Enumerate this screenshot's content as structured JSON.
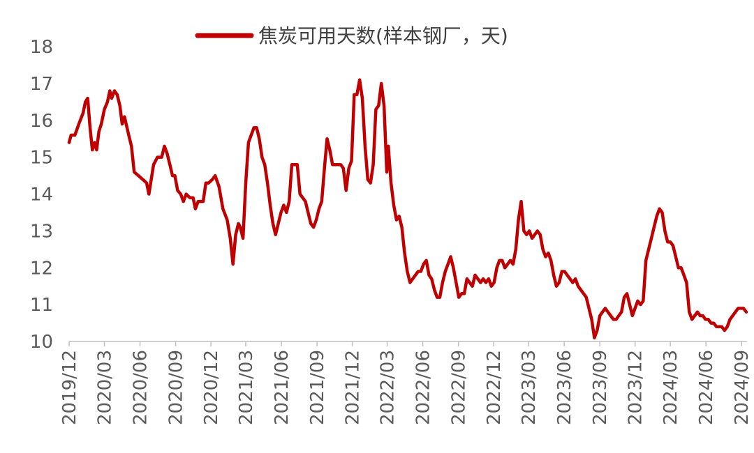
{
  "chart_data": {
    "type": "line",
    "title": "",
    "xlabel": "",
    "ylabel": "",
    "ylim": [
      10,
      18
    ],
    "y_ticks": [
      10,
      11,
      12,
      13,
      14,
      15,
      16,
      17,
      18
    ],
    "x_tick_labels": [
      "2019/12",
      "2020/03",
      "2020/06",
      "2020/09",
      "2020/12",
      "2021/03",
      "2021/06",
      "2021/09",
      "2021/12",
      "2022/03",
      "2022/06",
      "2022/09",
      "2022/12",
      "2023/03",
      "2023/06",
      "2023/09",
      "2023/12",
      "2024/03",
      "2024/06",
      "2024/09"
    ],
    "grid": false,
    "legend_position": "top",
    "series": [
      {
        "name": "焦炭可用天数(样本钢厂，天)",
        "color": "#c00000",
        "points": [
          [
            "2019-12-01",
            15.4
          ],
          [
            "2019-12-06",
            15.6
          ],
          [
            "2019-12-16",
            15.6
          ],
          [
            "2019-12-26",
            15.9
          ],
          [
            "2020-01-06",
            16.2
          ],
          [
            "2020-01-12",
            16.5
          ],
          [
            "2020-01-18",
            16.6
          ],
          [
            "2020-01-24",
            15.8
          ],
          [
            "2020-01-30",
            15.2
          ],
          [
            "2020-02-05",
            15.4
          ],
          [
            "2020-02-10",
            15.2
          ],
          [
            "2020-02-16",
            15.7
          ],
          [
            "2020-02-22",
            15.9
          ],
          [
            "2020-03-01",
            16.3
          ],
          [
            "2020-03-09",
            16.5
          ],
          [
            "2020-03-15",
            16.8
          ],
          [
            "2020-03-20",
            16.6
          ],
          [
            "2020-03-27",
            16.8
          ],
          [
            "2020-04-03",
            16.7
          ],
          [
            "2020-04-10",
            16.4
          ],
          [
            "2020-04-16",
            15.9
          ],
          [
            "2020-04-22",
            16.1
          ],
          [
            "2020-05-03",
            15.6
          ],
          [
            "2020-05-10",
            15.3
          ],
          [
            "2020-05-17",
            14.6
          ],
          [
            "2020-05-28",
            14.5
          ],
          [
            "2020-06-08",
            14.4
          ],
          [
            "2020-06-18",
            14.3
          ],
          [
            "2020-06-24",
            14.0
          ],
          [
            "2020-07-06",
            14.8
          ],
          [
            "2020-07-16",
            15.0
          ],
          [
            "2020-07-27",
            15.0
          ],
          [
            "2020-08-03",
            15.3
          ],
          [
            "2020-08-10",
            15.1
          ],
          [
            "2020-08-17",
            14.8
          ],
          [
            "2020-08-24",
            14.5
          ],
          [
            "2020-08-30",
            14.5
          ],
          [
            "2020-09-06",
            14.1
          ],
          [
            "2020-09-14",
            14.0
          ],
          [
            "2020-09-21",
            13.8
          ],
          [
            "2020-09-28",
            14.0
          ],
          [
            "2020-10-08",
            13.9
          ],
          [
            "2020-10-16",
            13.9
          ],
          [
            "2020-10-22",
            13.6
          ],
          [
            "2020-10-29",
            13.8
          ],
          [
            "2020-11-04",
            13.8
          ],
          [
            "2020-11-11",
            13.8
          ],
          [
            "2020-11-18",
            14.3
          ],
          [
            "2020-11-25",
            14.3
          ],
          [
            "2020-12-05",
            14.4
          ],
          [
            "2020-12-12",
            14.5
          ],
          [
            "2020-12-22",
            14.2
          ],
          [
            "2021-01-01",
            13.6
          ],
          [
            "2021-01-12",
            13.3
          ],
          [
            "2021-01-20",
            12.8
          ],
          [
            "2021-01-27",
            12.1
          ],
          [
            "2021-02-03",
            12.9
          ],
          [
            "2021-02-10",
            13.2
          ],
          [
            "2021-02-15",
            13.1
          ],
          [
            "2021-02-22",
            12.8
          ],
          [
            "2021-03-01",
            14.3
          ],
          [
            "2021-03-08",
            15.4
          ],
          [
            "2021-03-15",
            15.6
          ],
          [
            "2021-03-22",
            15.8
          ],
          [
            "2021-03-29",
            15.8
          ],
          [
            "2021-04-05",
            15.5
          ],
          [
            "2021-04-12",
            15.0
          ],
          [
            "2021-04-19",
            14.8
          ],
          [
            "2021-04-26",
            14.3
          ],
          [
            "2021-05-03",
            13.7
          ],
          [
            "2021-05-10",
            13.2
          ],
          [
            "2021-05-17",
            12.9
          ],
          [
            "2021-05-24",
            13.2
          ],
          [
            "2021-05-31",
            13.5
          ],
          [
            "2021-06-07",
            13.7
          ],
          [
            "2021-06-14",
            13.5
          ],
          [
            "2021-06-21",
            13.8
          ],
          [
            "2021-06-28",
            14.8
          ],
          [
            "2021-07-05",
            14.8
          ],
          [
            "2021-07-12",
            14.8
          ],
          [
            "2021-07-19",
            14.0
          ],
          [
            "2021-07-26",
            13.9
          ],
          [
            "2021-08-02",
            13.8
          ],
          [
            "2021-08-09",
            13.5
          ],
          [
            "2021-08-16",
            13.2
          ],
          [
            "2021-08-23",
            13.1
          ],
          [
            "2021-08-30",
            13.3
          ],
          [
            "2021-09-06",
            13.6
          ],
          [
            "2021-09-13",
            13.8
          ],
          [
            "2021-09-20",
            14.7
          ],
          [
            "2021-09-27",
            15.5
          ],
          [
            "2021-10-04",
            15.2
          ],
          [
            "2021-10-11",
            14.8
          ],
          [
            "2021-10-18",
            14.8
          ],
          [
            "2021-10-25",
            14.8
          ],
          [
            "2021-11-01",
            14.8
          ],
          [
            "2021-11-08",
            14.7
          ],
          [
            "2021-11-15",
            14.1
          ],
          [
            "2021-11-22",
            14.7
          ],
          [
            "2021-11-29",
            14.9
          ],
          [
            "2021-12-06",
            16.7
          ],
          [
            "2021-12-13",
            16.7
          ],
          [
            "2021-12-20",
            17.1
          ],
          [
            "2021-12-27",
            16.6
          ],
          [
            "2022-01-03",
            15.3
          ],
          [
            "2022-01-10",
            14.4
          ],
          [
            "2022-01-17",
            14.3
          ],
          [
            "2022-01-24",
            14.8
          ],
          [
            "2022-01-31",
            16.3
          ],
          [
            "2022-02-07",
            16.4
          ],
          [
            "2022-02-14",
            17.0
          ],
          [
            "2022-02-21",
            16.4
          ],
          [
            "2022-02-28",
            14.6
          ],
          [
            "2022-03-04",
            15.3
          ],
          [
            "2022-03-11",
            14.3
          ],
          [
            "2022-03-18",
            13.7
          ],
          [
            "2022-03-25",
            13.3
          ],
          [
            "2022-04-01",
            13.4
          ],
          [
            "2022-04-08",
            13.1
          ],
          [
            "2022-04-15",
            12.4
          ],
          [
            "2022-04-22",
            11.9
          ],
          [
            "2022-04-29",
            11.6
          ],
          [
            "2022-05-06",
            11.7
          ],
          [
            "2022-05-13",
            11.8
          ],
          [
            "2022-05-20",
            11.9
          ],
          [
            "2022-05-27",
            11.9
          ],
          [
            "2022-06-03",
            12.1
          ],
          [
            "2022-06-10",
            12.2
          ],
          [
            "2022-06-17",
            11.8
          ],
          [
            "2022-06-24",
            11.7
          ],
          [
            "2022-07-01",
            11.4
          ],
          [
            "2022-07-08",
            11.2
          ],
          [
            "2022-07-15",
            11.2
          ],
          [
            "2022-07-22",
            11.6
          ],
          [
            "2022-07-29",
            11.9
          ],
          [
            "2022-08-05",
            12.1
          ],
          [
            "2022-08-12",
            12.3
          ],
          [
            "2022-08-19",
            12.0
          ],
          [
            "2022-08-26",
            11.6
          ],
          [
            "2022-09-02",
            11.2
          ],
          [
            "2022-09-09",
            11.3
          ],
          [
            "2022-09-16",
            11.3
          ],
          [
            "2022-09-23",
            11.7
          ],
          [
            "2022-09-30",
            11.6
          ],
          [
            "2022-10-07",
            11.5
          ],
          [
            "2022-10-14",
            11.8
          ],
          [
            "2022-10-21",
            11.7
          ],
          [
            "2022-10-28",
            11.6
          ],
          [
            "2022-11-04",
            11.7
          ],
          [
            "2022-11-11",
            11.6
          ],
          [
            "2022-11-18",
            11.7
          ],
          [
            "2022-11-25",
            11.5
          ],
          [
            "2022-12-02",
            11.6
          ],
          [
            "2022-12-09",
            12.0
          ],
          [
            "2022-12-16",
            12.2
          ],
          [
            "2022-12-23",
            12.2
          ],
          [
            "2022-12-30",
            12.0
          ],
          [
            "2023-01-06",
            12.1
          ],
          [
            "2023-01-13",
            12.2
          ],
          [
            "2023-01-20",
            12.1
          ],
          [
            "2023-01-27",
            12.5
          ],
          [
            "2023-02-03",
            13.3
          ],
          [
            "2023-02-10",
            13.8
          ],
          [
            "2023-02-17",
            13.0
          ],
          [
            "2023-02-24",
            12.9
          ],
          [
            "2023-03-03",
            13.0
          ],
          [
            "2023-03-10",
            12.8
          ],
          [
            "2023-03-17",
            12.9
          ],
          [
            "2023-03-24",
            13.0
          ],
          [
            "2023-03-31",
            12.9
          ],
          [
            "2023-04-07",
            12.5
          ],
          [
            "2023-04-14",
            12.3
          ],
          [
            "2023-04-21",
            12.4
          ],
          [
            "2023-04-28",
            12.2
          ],
          [
            "2023-05-05",
            11.8
          ],
          [
            "2023-05-12",
            11.5
          ],
          [
            "2023-05-19",
            11.6
          ],
          [
            "2023-05-26",
            11.9
          ],
          [
            "2023-06-02",
            11.9
          ],
          [
            "2023-06-09",
            11.8
          ],
          [
            "2023-06-16",
            11.7
          ],
          [
            "2023-06-23",
            11.6
          ],
          [
            "2023-06-30",
            11.7
          ],
          [
            "2023-07-07",
            11.5
          ],
          [
            "2023-07-14",
            11.4
          ],
          [
            "2023-07-21",
            11.3
          ],
          [
            "2023-07-28",
            11.2
          ],
          [
            "2023-08-04",
            10.9
          ],
          [
            "2023-08-11",
            10.6
          ],
          [
            "2023-08-18",
            10.1
          ],
          [
            "2023-08-25",
            10.3
          ],
          [
            "2023-09-01",
            10.7
          ],
          [
            "2023-09-08",
            10.8
          ],
          [
            "2023-09-15",
            10.9
          ],
          [
            "2023-09-22",
            10.8
          ],
          [
            "2023-09-29",
            10.7
          ],
          [
            "2023-10-06",
            10.6
          ],
          [
            "2023-10-13",
            10.6
          ],
          [
            "2023-10-20",
            10.7
          ],
          [
            "2023-10-27",
            10.8
          ],
          [
            "2023-11-03",
            11.2
          ],
          [
            "2023-11-10",
            11.3
          ],
          [
            "2023-11-17",
            11.0
          ],
          [
            "2023-11-24",
            10.7
          ],
          [
            "2023-12-01",
            10.9
          ],
          [
            "2023-12-08",
            11.1
          ],
          [
            "2023-12-15",
            11.0
          ],
          [
            "2023-12-22",
            11.1
          ],
          [
            "2023-12-29",
            12.2
          ],
          [
            "2024-01-05",
            12.5
          ],
          [
            "2024-01-12",
            12.8
          ],
          [
            "2024-01-19",
            13.1
          ],
          [
            "2024-01-26",
            13.4
          ],
          [
            "2024-02-02",
            13.6
          ],
          [
            "2024-02-09",
            13.5
          ],
          [
            "2024-02-16",
            13.0
          ],
          [
            "2024-02-23",
            12.7
          ],
          [
            "2024-03-01",
            12.7
          ],
          [
            "2024-03-08",
            12.6
          ],
          [
            "2024-03-15",
            12.3
          ],
          [
            "2024-03-22",
            12.0
          ],
          [
            "2024-03-29",
            12.0
          ],
          [
            "2024-04-05",
            11.8
          ],
          [
            "2024-04-12",
            11.6
          ],
          [
            "2024-04-19",
            10.8
          ],
          [
            "2024-04-26",
            10.6
          ],
          [
            "2024-05-03",
            10.7
          ],
          [
            "2024-05-10",
            10.8
          ],
          [
            "2024-05-17",
            10.7
          ],
          [
            "2024-05-24",
            10.7
          ],
          [
            "2024-05-31",
            10.6
          ],
          [
            "2024-06-07",
            10.6
          ],
          [
            "2024-06-14",
            10.5
          ],
          [
            "2024-06-21",
            10.5
          ],
          [
            "2024-06-28",
            10.4
          ],
          [
            "2024-07-05",
            10.4
          ],
          [
            "2024-07-12",
            10.4
          ],
          [
            "2024-07-19",
            10.3
          ],
          [
            "2024-07-26",
            10.4
          ],
          [
            "2024-08-02",
            10.6
          ],
          [
            "2024-08-09",
            10.7
          ],
          [
            "2024-08-16",
            10.8
          ],
          [
            "2024-08-23",
            10.9
          ],
          [
            "2024-08-30",
            10.9
          ],
          [
            "2024-09-06",
            10.9
          ],
          [
            "2024-09-13",
            10.8
          ]
        ]
      }
    ]
  }
}
